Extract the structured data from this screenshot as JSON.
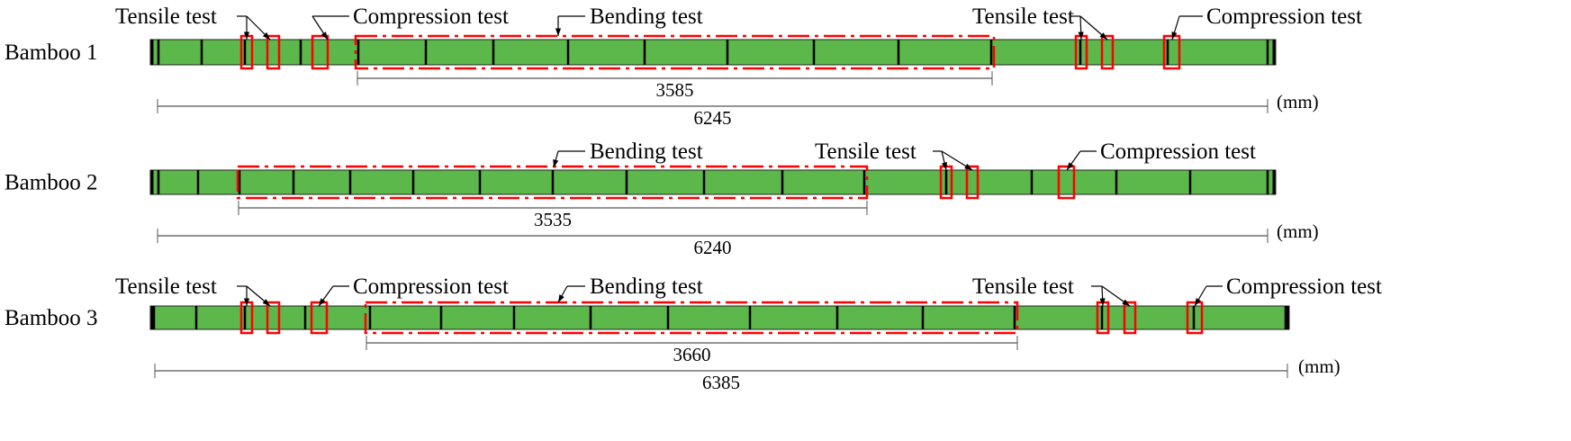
{
  "colors": {
    "bamboo": "#5cb84a",
    "test_box": "#ff0000",
    "node": "#000000",
    "dimension": "#555555"
  },
  "unit": "(mm)",
  "bamboos": [
    {
      "name": "Bamboo 1",
      "bending_length": "3585",
      "total_length": "6245",
      "labels": {
        "tensile_1": "Tensile test",
        "compression_1": "Compression test",
        "bending": "Bending test",
        "tensile_2": "Tensile test",
        "compression_2": "Compression test"
      }
    },
    {
      "name": "Bamboo 2",
      "bending_length": "3535",
      "total_length": "6240",
      "labels": {
        "bending": "Bending test",
        "tensile_1": "Tensile test",
        "compression_1": "Compression test"
      }
    },
    {
      "name": "Bamboo 3",
      "bending_length": "3660",
      "total_length": "6385",
      "labels": {
        "tensile_1": "Tensile test",
        "compression_1": "Compression test",
        "bending": "Bending test",
        "tensile_2": "Tensile test",
        "compression_2": "Compression test"
      }
    }
  ]
}
